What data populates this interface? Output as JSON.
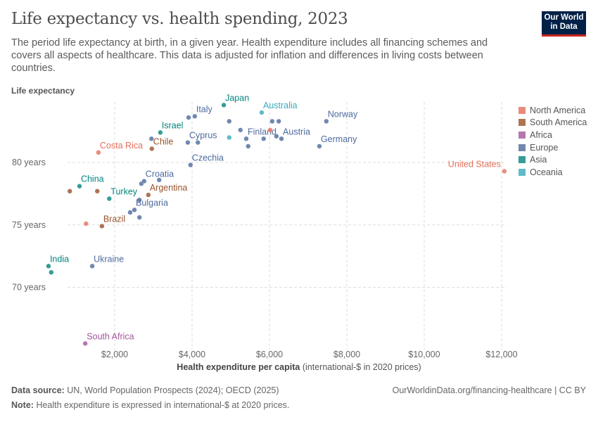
{
  "header": {
    "title": "Life expectancy vs. health spending, 2023",
    "subtitle": "The period life expectancy at birth, in a given year. Health expenditure includes all financing schemes and covers all aspects of healthcare. This data is adjusted for inflation and differences in living costs between countries.",
    "logo": "Our World in Data"
  },
  "footer": {
    "source_label": "Data source:",
    "source": "UN, World Population Prospects (2024); OECD (2025)",
    "url": "OurWorldinData.org/financing-healthcare | CC BY",
    "note_label": "Note:",
    "note": "Health expenditure is expressed in international-$ at 2020 prices."
  },
  "chart_data": {
    "type": "scatter",
    "title": "Life expectancy vs. health spending, 2023",
    "xlabel": "Health expenditure per capita",
    "xlabel_suffix": "(international-$ in 2020 prices)",
    "ylabel": "Life expectancy",
    "xlim": [
      0,
      12500
    ],
    "ylim": [
      65,
      85
    ],
    "xticks": [
      2000,
      4000,
      6000,
      8000,
      10000,
      12000
    ],
    "xtick_labels": [
      "$2,000",
      "$4,000",
      "$6,000",
      "$8,000",
      "$10,000",
      "$12,000"
    ],
    "yticks": [
      70,
      75,
      80
    ],
    "ytick_labels": [
      "70 years",
      "75 years",
      "80 years"
    ],
    "grid": true,
    "legend_position": "right",
    "legend": [
      {
        "name": "North America",
        "color": "#E56E5A"
      },
      {
        "name": "South America",
        "color": "#9A5129"
      },
      {
        "name": "Africa",
        "color": "#A2559C"
      },
      {
        "name": "Europe",
        "color": "#4C6A9C"
      },
      {
        "name": "Asia",
        "color": "#00847E"
      },
      {
        "name": "Oceania",
        "color": "#38AABA"
      }
    ],
    "points": [
      {
        "label": "Japan",
        "region": "Asia",
        "x": 4820,
        "y": 84.6
      },
      {
        "label": "Italy",
        "region": "Europe",
        "x": 4070,
        "y": 83.7
      },
      {
        "label": "",
        "region": "Europe",
        "x": 3910,
        "y": 83.6
      },
      {
        "label": "Israel",
        "region": "Asia",
        "x": 3180,
        "y": 82.4
      },
      {
        "label": "",
        "region": "Europe",
        "x": 2950,
        "y": 81.9
      },
      {
        "label": "Chile",
        "region": "South America",
        "x": 2960,
        "y": 81.1
      },
      {
        "label": "Costa Rica",
        "region": "North America",
        "x": 1580,
        "y": 80.8
      },
      {
        "label": "Cyprus",
        "region": "Europe",
        "x": 3890,
        "y": 81.6
      },
      {
        "label": "",
        "region": "Europe",
        "x": 4150,
        "y": 81.6
      },
      {
        "label": "Czechia",
        "region": "Europe",
        "x": 3960,
        "y": 79.8
      },
      {
        "label": "",
        "region": "Europe",
        "x": 2690,
        "y": 78.3
      },
      {
        "label": "Croatia",
        "region": "Europe",
        "x": 2760,
        "y": 78.5
      },
      {
        "label": "",
        "region": "Europe",
        "x": 3150,
        "y": 78.6
      },
      {
        "label": "China",
        "region": "Asia",
        "x": 1090,
        "y": 78.1
      },
      {
        "label": "",
        "region": "South America",
        "x": 840,
        "y": 77.7
      },
      {
        "label": "",
        "region": "South America",
        "x": 1550,
        "y": 77.7
      },
      {
        "label": "Turkey",
        "region": "Asia",
        "x": 1860,
        "y": 77.1
      },
      {
        "label": "Argentina",
        "region": "South America",
        "x": 2870,
        "y": 77.4
      },
      {
        "label": "",
        "region": "Europe",
        "x": 2640,
        "y": 77.0
      },
      {
        "label": "",
        "region": "Europe",
        "x": 2400,
        "y": 76.0
      },
      {
        "label": "Bulgaria",
        "region": "Europe",
        "x": 2510,
        "y": 76.2
      },
      {
        "label": "",
        "region": "Europe",
        "x": 2640,
        "y": 75.6
      },
      {
        "label": "Brazil",
        "region": "South America",
        "x": 1670,
        "y": 74.9
      },
      {
        "label": "",
        "region": "North America",
        "x": 1260,
        "y": 75.1
      },
      {
        "label": "India",
        "region": "Asia",
        "x": 290,
        "y": 71.7
      },
      {
        "label": "",
        "region": "Asia",
        "x": 360,
        "y": 71.2
      },
      {
        "label": "Ukraine",
        "region": "Europe",
        "x": 1420,
        "y": 71.7
      },
      {
        "label": "South Africa",
        "region": "Africa",
        "x": 1240,
        "y": 65.5
      },
      {
        "label": "United States",
        "region": "North America",
        "x": 12070,
        "y": 79.3
      },
      {
        "label": "",
        "region": "Europe",
        "x": 4960,
        "y": 83.3
      },
      {
        "label": "",
        "region": "Europe",
        "x": 5250,
        "y": 82.6
      },
      {
        "label": "",
        "region": "Oceania",
        "x": 4960,
        "y": 82.0
      },
      {
        "label": "Finland",
        "region": "Europe",
        "x": 5400,
        "y": 81.9
      },
      {
        "label": "",
        "region": "Europe",
        "x": 5450,
        "y": 81.3
      },
      {
        "label": "",
        "region": "Europe",
        "x": 5850,
        "y": 81.9
      },
      {
        "label": "",
        "region": "North America",
        "x": 6020,
        "y": 82.6
      },
      {
        "label": "",
        "region": "Europe",
        "x": 6070,
        "y": 83.3
      },
      {
        "label": "",
        "region": "Europe",
        "x": 6240,
        "y": 83.3
      },
      {
        "label": "Australia",
        "region": "Oceania",
        "x": 5800,
        "y": 84.0
      },
      {
        "label": "",
        "region": "Europe",
        "x": 6180,
        "y": 82.1
      },
      {
        "label": "Austria",
        "region": "Europe",
        "x": 6310,
        "y": 81.9
      },
      {
        "label": "Norway",
        "region": "Europe",
        "x": 7470,
        "y": 83.3
      },
      {
        "label": "Germany",
        "region": "Europe",
        "x": 7290,
        "y": 81.3
      }
    ]
  }
}
